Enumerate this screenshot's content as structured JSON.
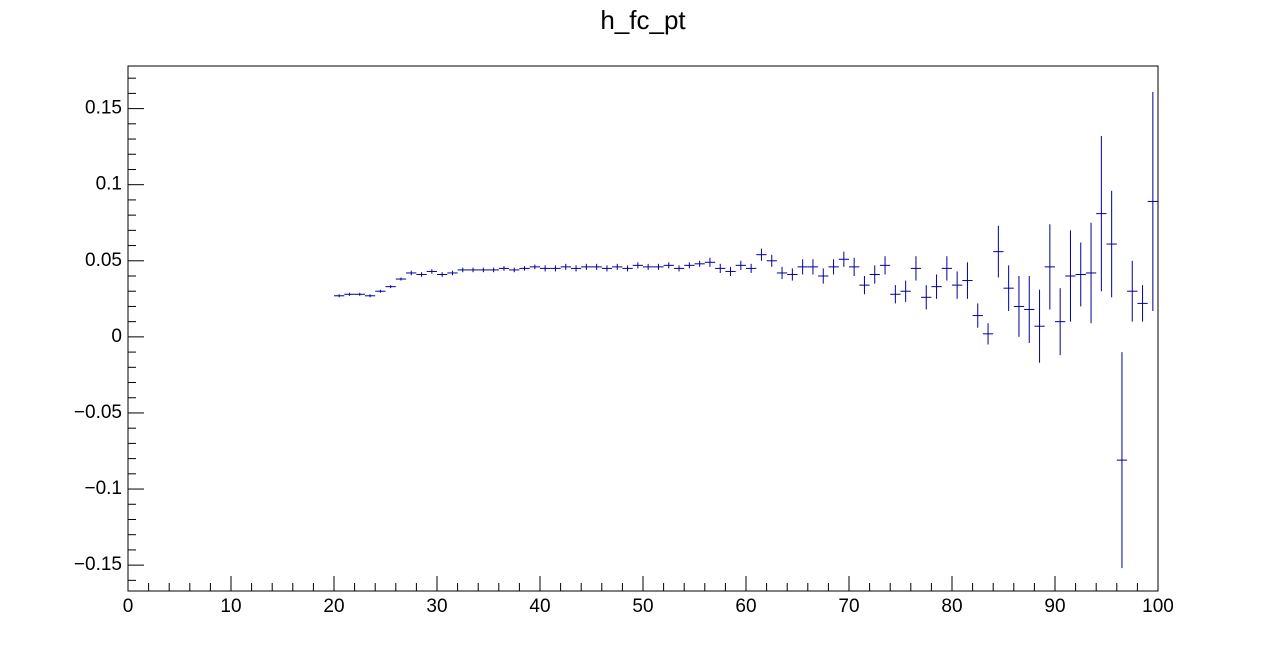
{
  "chart_data": {
    "type": "histogram",
    "title": "h_fc_pt",
    "color": "#000099",
    "bins": [
      20,
      21,
      22,
      23,
      24,
      25,
      26,
      27,
      28,
      29,
      30,
      31,
      32,
      33,
      34,
      35,
      36,
      37,
      38,
      39,
      40,
      41,
      42,
      43,
      44,
      45,
      46,
      47,
      48,
      49,
      50,
      51,
      52,
      53,
      54,
      55,
      56,
      57,
      58,
      59,
      60,
      61,
      62,
      63,
      64,
      65,
      66,
      67,
      68,
      69,
      70,
      71,
      72,
      73,
      74,
      75,
      76,
      77,
      78,
      79,
      80,
      81,
      82,
      83,
      84,
      85,
      86,
      87,
      88,
      89,
      90,
      91,
      92,
      93,
      94,
      95,
      96,
      97,
      98,
      99,
      100
    ],
    "values": [
      0.027,
      0.028,
      0.028,
      0.027,
      0.03,
      0.033,
      0.038,
      0.042,
      0.041,
      0.043,
      0.041,
      0.042,
      0.044,
      0.044,
      0.044,
      0.044,
      0.045,
      0.044,
      0.045,
      0.046,
      0.045,
      0.045,
      0.046,
      0.045,
      0.046,
      0.046,
      0.045,
      0.046,
      0.045,
      0.047,
      0.046,
      0.046,
      0.047,
      0.045,
      0.047,
      0.048,
      0.049,
      0.045,
      0.043,
      0.047,
      0.045,
      0.054,
      0.05,
      0.042,
      0.041,
      0.046,
      0.046,
      0.04,
      0.046,
      0.051,
      0.046,
      0.034,
      0.041,
      0.047,
      0.028,
      0.03,
      0.045,
      0.026,
      0.033,
      0.045,
      0.034,
      0.037,
      0.014,
      0.002,
      0.056,
      0.032,
      0.02,
      0.018,
      0.007,
      0.046,
      0.01,
      0.04,
      0.041,
      0.042,
      0.081,
      0.061,
      -0.081,
      0.03,
      0.022,
      0.089
    ],
    "errors": [
      0.001,
      0.001,
      0.001,
      0.001,
      0.001,
      0.001,
      0.001,
      0.0015,
      0.0015,
      0.0015,
      0.0015,
      0.0015,
      0.0015,
      0.0015,
      0.0015,
      0.0015,
      0.0015,
      0.0015,
      0.0015,
      0.0015,
      0.002,
      0.002,
      0.002,
      0.002,
      0.002,
      0.002,
      0.002,
      0.002,
      0.002,
      0.002,
      0.002,
      0.002,
      0.002,
      0.002,
      0.002,
      0.002,
      0.003,
      0.003,
      0.003,
      0.003,
      0.003,
      0.004,
      0.004,
      0.004,
      0.004,
      0.005,
      0.005,
      0.005,
      0.005,
      0.005,
      0.006,
      0.006,
      0.006,
      0.006,
      0.006,
      0.007,
      0.008,
      0.008,
      0.008,
      0.008,
      0.009,
      0.012,
      0.008,
      0.007,
      0.017,
      0.015,
      0.02,
      0.022,
      0.024,
      0.028,
      0.022,
      0.03,
      0.021,
      0.033,
      0.051,
      0.035,
      0.071,
      0.02,
      0.012,
      0.072
    ],
    "xlim": [
      0,
      100
    ],
    "xticks": [
      0,
      10,
      20,
      30,
      40,
      50,
      60,
      70,
      80,
      90,
      100
    ],
    "ylim": [
      -0.167,
      0.178
    ],
    "yticks": [
      {
        "value": -0.15,
        "label": "−0.15"
      },
      {
        "value": -0.1,
        "label": "−0.1"
      },
      {
        "value": -0.05,
        "label": "−0.05"
      },
      0,
      0.05,
      0.1,
      0.15
    ]
  }
}
